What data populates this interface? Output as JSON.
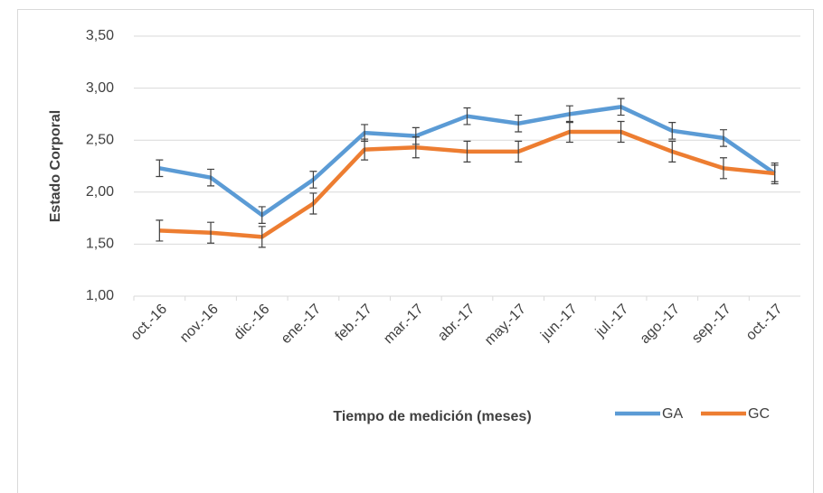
{
  "chart_data": {
    "type": "line",
    "x_label": "Tiempo de medición (meses)",
    "y_label": "Estado Corporal",
    "categories": [
      "oct.-16",
      "nov.-16",
      "dic.-16",
      "ene.-17",
      "feb.-17",
      "mar.-17",
      "abr.-17",
      "may.-17",
      "jun.-17",
      "jul.-17",
      "ago.-17",
      "sep.-17",
      "oct.-17"
    ],
    "series": [
      {
        "name": "GA",
        "color": "#5b9bd5",
        "values": [
          2.23,
          2.14,
          1.78,
          2.12,
          2.57,
          2.54,
          2.73,
          2.66,
          2.75,
          2.82,
          2.59,
          2.52,
          2.18
        ],
        "errors": [
          0.08,
          0.08,
          0.08,
          0.08,
          0.08,
          0.08,
          0.08,
          0.08,
          0.08,
          0.08,
          0.08,
          0.08,
          0.08
        ]
      },
      {
        "name": "GC",
        "color": "#ed7d31",
        "values": [
          1.63,
          1.61,
          1.57,
          1.89,
          2.41,
          2.43,
          2.39,
          2.39,
          2.58,
          2.58,
          2.39,
          2.23,
          2.18
        ],
        "errors": [
          0.1,
          0.1,
          0.1,
          0.1,
          0.1,
          0.1,
          0.1,
          0.1,
          0.1,
          0.1,
          0.1,
          0.1,
          0.1
        ]
      }
    ],
    "ylim": [
      1,
      3.5
    ],
    "yticks": [
      {
        "value": 1,
        "label": "1,00"
      },
      {
        "value": 1.5,
        "label": "1,50"
      },
      {
        "value": 2,
        "label": "2,00"
      },
      {
        "value": 2.5,
        "label": "2,50"
      },
      {
        "value": 3,
        "label": "3,00"
      },
      {
        "value": 3.5,
        "label": "3,50"
      }
    ],
    "grid": true,
    "legend": "bottom-right"
  }
}
